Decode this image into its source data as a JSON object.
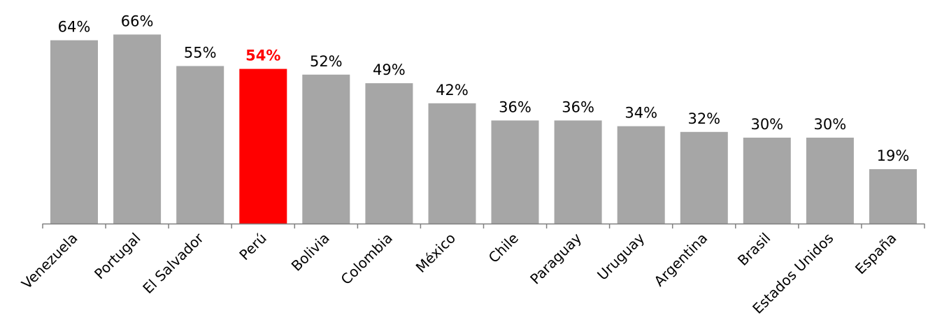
{
  "chart_data": {
    "type": "bar",
    "title": "",
    "xlabel": "",
    "ylabel": "",
    "ylim": [
      0,
      0.7
    ],
    "grid": false,
    "legend": "none",
    "value_format": "percent",
    "categories": [
      "Venezuela",
      "Portugal",
      "El Salvador",
      "Perú",
      "Bolivia",
      "Colombia",
      "México",
      "Chile",
      "Paraguay",
      "Uruguay",
      "Argentina",
      "Brasil",
      "Estados Unidos",
      "España"
    ],
    "values": [
      0.64,
      0.66,
      0.55,
      0.54,
      0.52,
      0.49,
      0.42,
      0.36,
      0.36,
      0.34,
      0.32,
      0.3,
      0.3,
      0.19
    ],
    "data_labels": [
      "64%",
      "66%",
      "55%",
      "54%",
      "52%",
      "49%",
      "42%",
      "36%",
      "36%",
      "34%",
      "32%",
      "30%",
      "30%",
      "19%"
    ],
    "highlight_index": 3,
    "colors": {
      "bar": "#a6a6a6",
      "highlight_bar": "#ff0000",
      "highlight_label": "#ff0000",
      "axis": "#808080"
    }
  }
}
